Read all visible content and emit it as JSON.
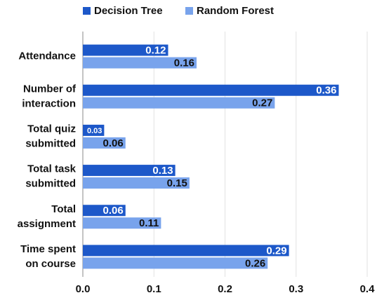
{
  "chart_data": {
    "type": "hbar",
    "categories": [
      "Attendance",
      "Number of\ninteraction",
      "Total quiz\nsubmitted",
      "Total task\nsubmitted",
      "Total\nassignment",
      "Time spent\non course"
    ],
    "series": [
      {
        "name": "Decision Tree",
        "color": "#1d58c9",
        "values": [
          0.12,
          0.36,
          0.03,
          0.13,
          0.06,
          0.29
        ]
      },
      {
        "name": "Random Forest",
        "color": "#78a3ec",
        "values": [
          0.16,
          0.27,
          0.06,
          0.15,
          0.11,
          0.26
        ]
      }
    ],
    "xlim": [
      0,
      0.4
    ],
    "xticks": [
      {
        "value": 0,
        "label": "0.0"
      },
      0.1,
      0.2,
      0.3,
      0.4
    ],
    "grid": true,
    "legend": "top"
  }
}
